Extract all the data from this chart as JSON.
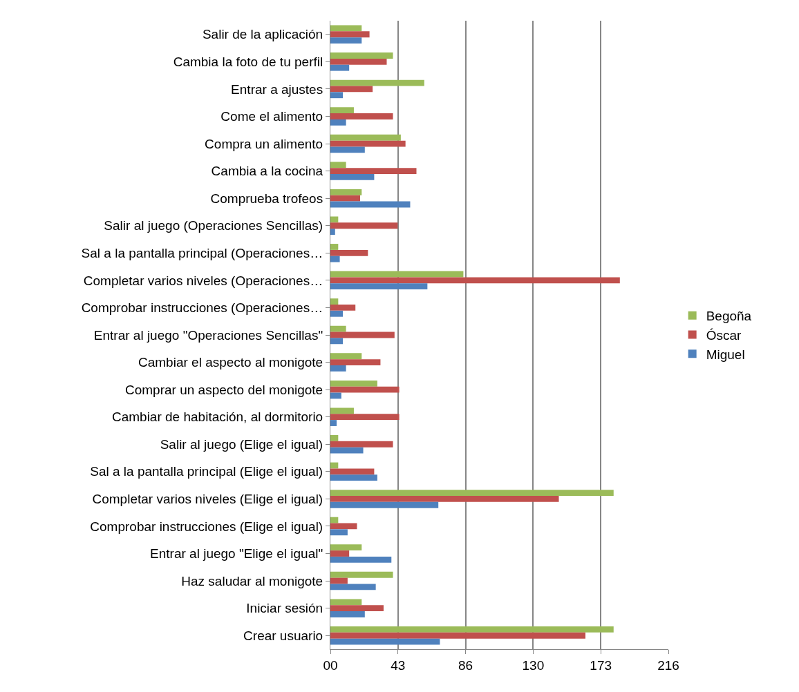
{
  "chart_data": {
    "type": "bar",
    "orientation": "horizontal",
    "categories": [
      "Salir de la aplicación",
      "Cambia la foto de tu perfil",
      "Entrar a ajustes",
      "Come el alimento",
      "Compra un alimento",
      "Cambia a la cocina",
      "Comprueba trofeos",
      "Salir al juego (Operaciones Sencillas)",
      "Sal a la pantalla principal (Operaciones…",
      "Completar varios niveles (Operaciones…",
      "Comprobar instrucciones (Operaciones…",
      "Entrar al juego \"Operaciones Sencillas\"",
      "Cambiar el aspecto al monigote",
      "Comprar un aspecto del monigote",
      "Cambiar de habitación, al dormitorio",
      "Salir al juego (Elige el igual)",
      "Sal a la pantalla principal (Elige el igual)",
      "Completar varios niveles (Elige el igual)",
      "Comprobar instrucciones (Elige el igual)",
      "Entrar al juego \"Elige el igual\"",
      "Haz saludar al monigote",
      "Iniciar sesión",
      "Crear usuario"
    ],
    "series": [
      {
        "name": "Begoña",
        "color": "#9bbb59",
        "values": [
          20,
          40,
          60,
          15,
          45,
          10,
          20,
          5,
          5,
          85,
          5,
          10,
          20,
          30,
          15,
          5,
          5,
          181,
          5,
          20,
          40,
          20,
          181
        ]
      },
      {
        "name": "Óscar",
        "color": "#c0504d",
        "values": [
          25,
          36,
          27,
          40,
          48,
          55,
          19,
          43,
          24,
          185,
          16,
          41,
          32,
          44,
          44,
          40,
          28,
          146,
          17,
          12,
          11,
          34,
          163
        ]
      },
      {
        "name": "Miguel",
        "color": "#4f81bd",
        "values": [
          20,
          12,
          8,
          10,
          22,
          28,
          51,
          3,
          6,
          62,
          8,
          8,
          10,
          7,
          4,
          21,
          30,
          69,
          11,
          39,
          29,
          22,
          70
        ]
      }
    ],
    "xlim": [
      0,
      216
    ],
    "xticks": [
      {
        "value": 0,
        "label": "00"
      },
      {
        "value": 43.2,
        "label": "43"
      },
      {
        "value": 86.4,
        "label": "86"
      },
      {
        "value": 129.6,
        "label": "130"
      },
      {
        "value": 172.8,
        "label": "173"
      },
      {
        "value": 216,
        "label": "216"
      }
    ],
    "grid": "x",
    "legend": "right"
  }
}
